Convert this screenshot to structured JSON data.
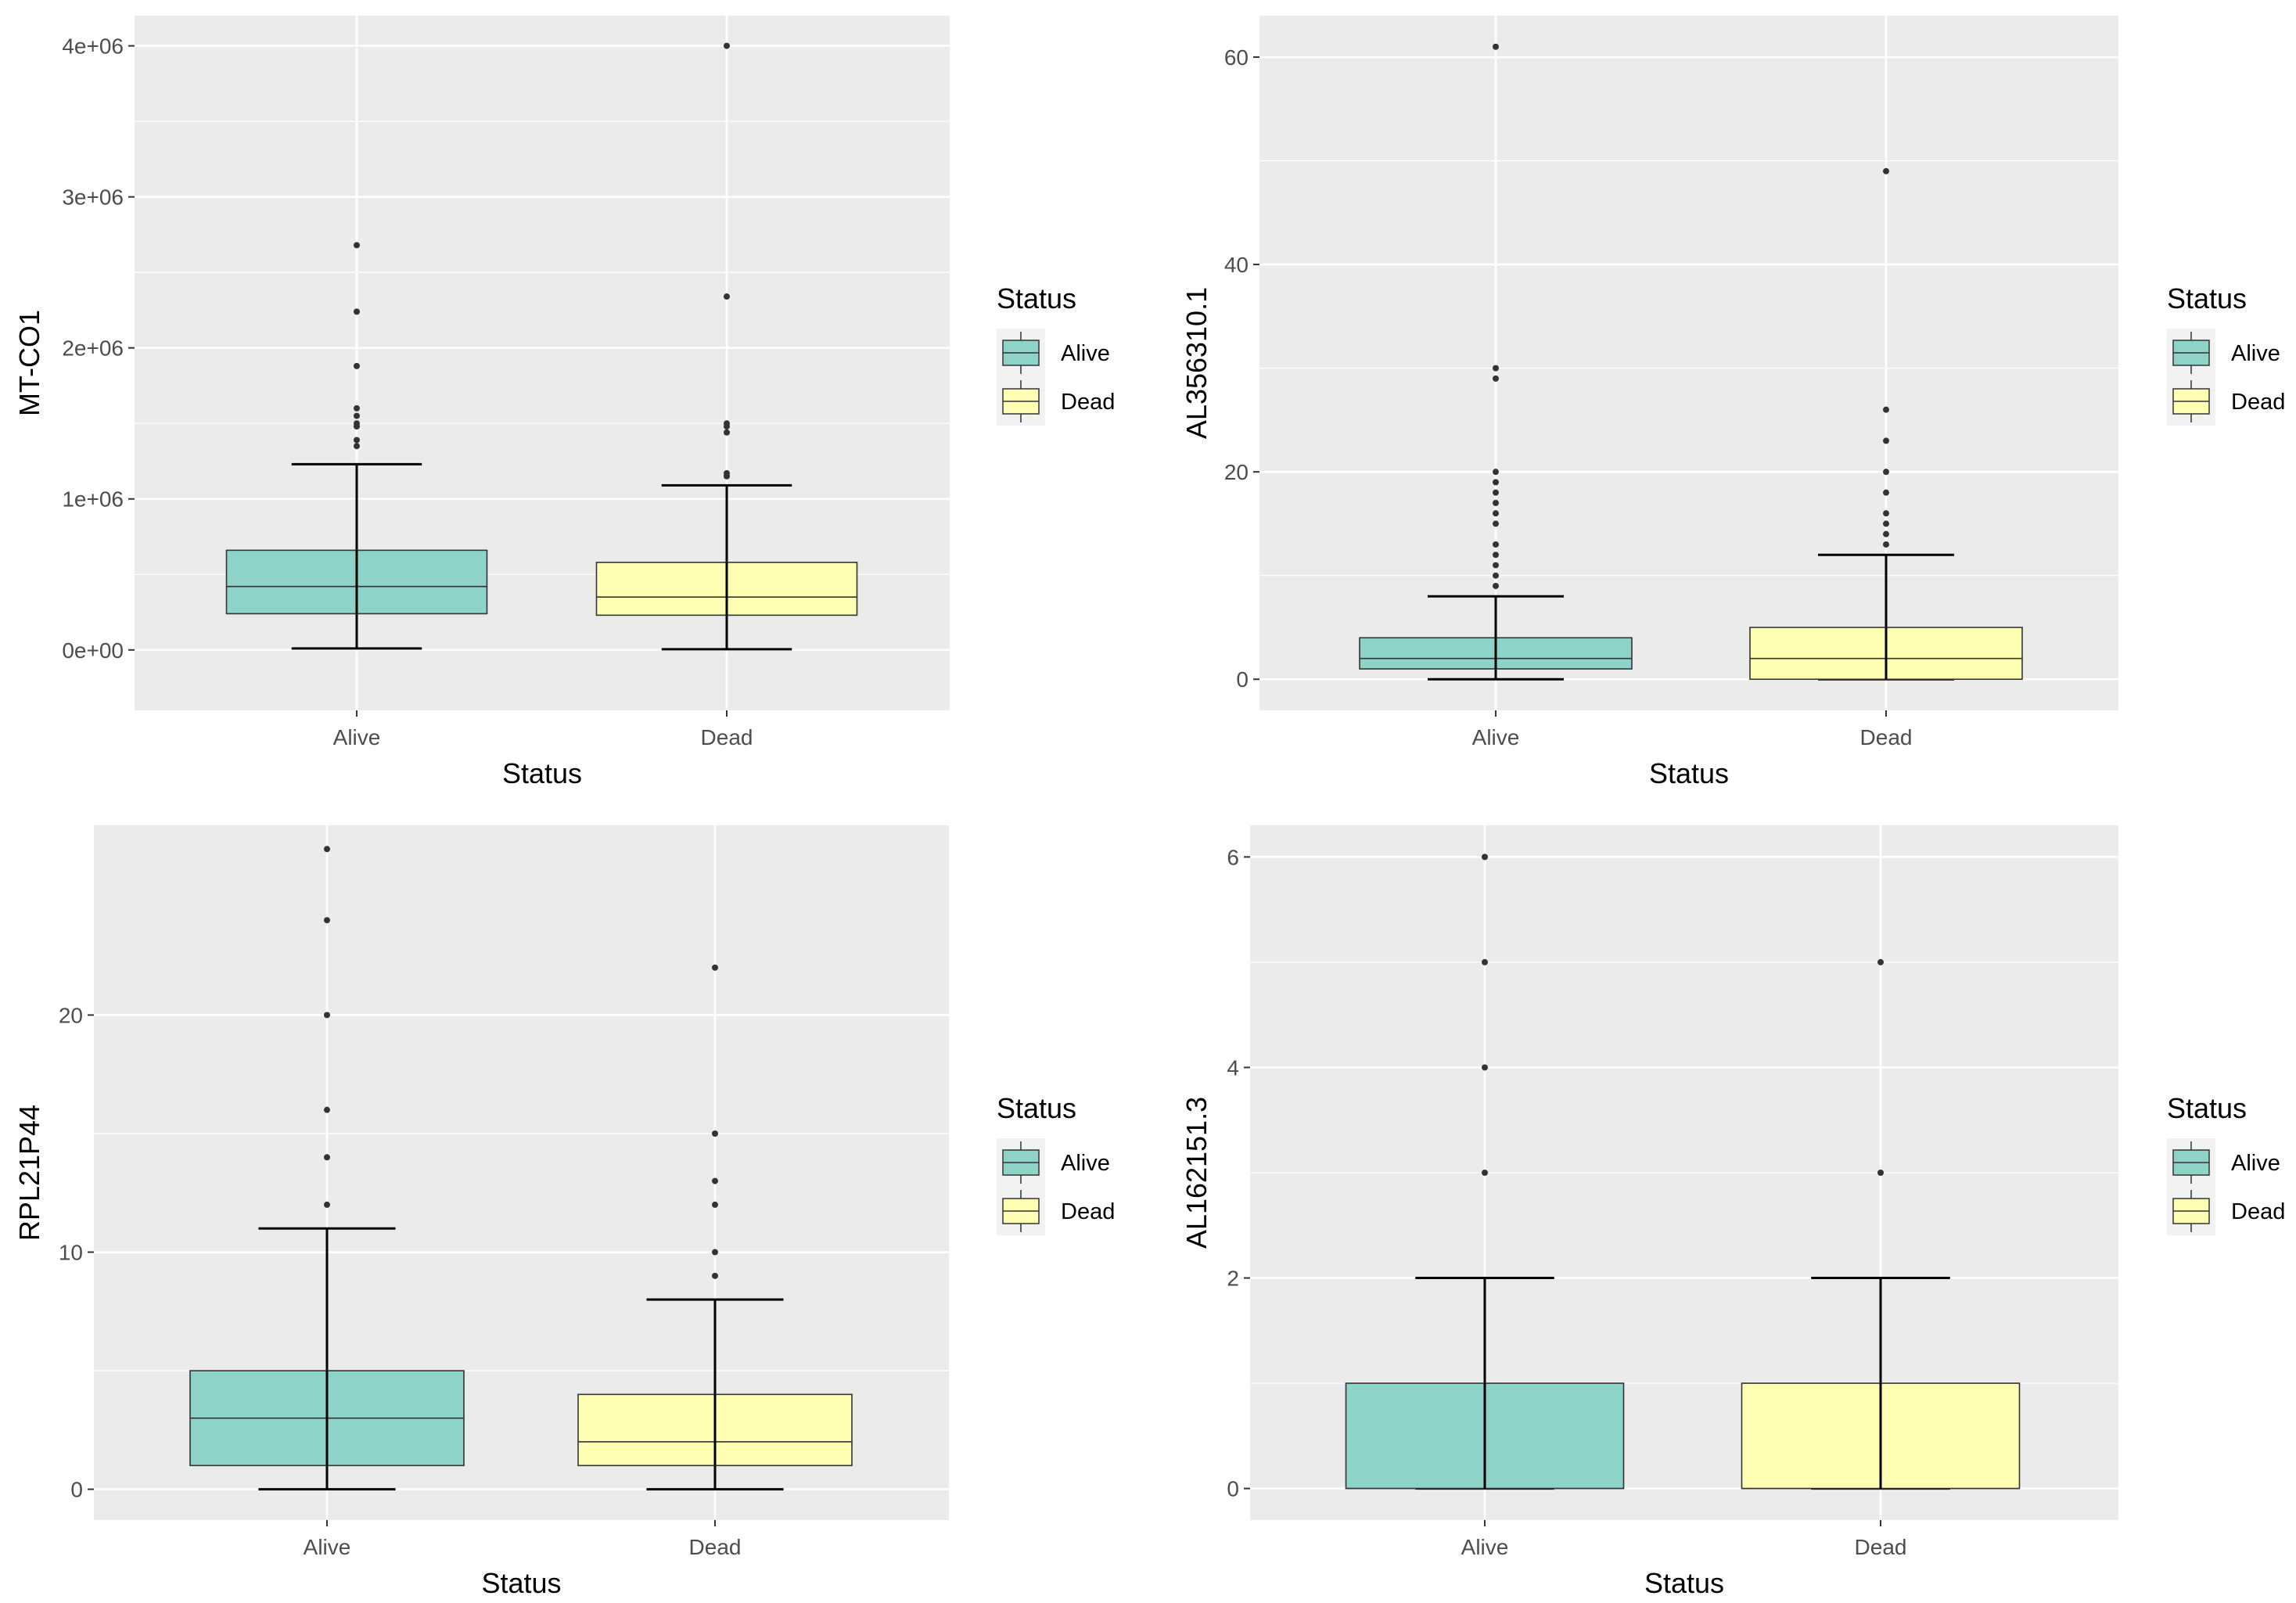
{
  "legend_title": "Status",
  "legend_items": [
    {
      "label": "Alive",
      "color": "#8DD3C7"
    },
    {
      "label": "Dead",
      "color": "#FFFFB3"
    }
  ],
  "chart_data": [
    {
      "type": "boxplot",
      "xlabel": "Status",
      "ylabel": "MT-CO1",
      "categories": [
        "Alive",
        "Dead"
      ],
      "ylim": [
        -400000,
        4200000
      ],
      "yticks": [
        0,
        1000000,
        2000000,
        3000000,
        4000000
      ],
      "ytick_labels": [
        "0e+00",
        "1e+06",
        "2e+06",
        "3e+06",
        "4e+06"
      ],
      "boxes": [
        {
          "category": "Alive",
          "min": 10000,
          "q1": 240000,
          "median": 420000,
          "q3": 660000,
          "max": 1230000,
          "outliers": [
            1350000,
            1390000,
            1480000,
            1500000,
            1550000,
            1600000,
            1880000,
            2240000,
            2680000
          ]
        },
        {
          "category": "Dead",
          "min": 5000,
          "q1": 230000,
          "median": 350000,
          "q3": 580000,
          "max": 1090000,
          "outliers": [
            1150000,
            1170000,
            1440000,
            1480000,
            1500000,
            2340000,
            4000000
          ]
        }
      ]
    },
    {
      "type": "boxplot",
      "xlabel": "Status",
      "ylabel": "AL356310.1",
      "categories": [
        "Alive",
        "Dead"
      ],
      "ylim": [
        -3,
        64
      ],
      "yticks": [
        0,
        20,
        40,
        60
      ],
      "ytick_labels": [
        "0",
        "20",
        "40",
        "60"
      ],
      "boxes": [
        {
          "category": "Alive",
          "min": 0,
          "q1": 1,
          "median": 2,
          "q3": 4,
          "max": 8,
          "outliers": [
            9,
            10,
            11,
            12,
            13,
            15,
            16,
            17,
            18,
            19,
            20,
            29,
            30,
            61
          ]
        },
        {
          "category": "Dead",
          "min": 0,
          "q1": 0,
          "median": 2,
          "q3": 5,
          "max": 12,
          "outliers": [
            13,
            14,
            15,
            16,
            18,
            20,
            23,
            26,
            49
          ]
        }
      ]
    },
    {
      "type": "boxplot",
      "xlabel": "Status",
      "ylabel": "RPL21P44",
      "categories": [
        "Alive",
        "Dead"
      ],
      "ylim": [
        -1.3,
        28
      ],
      "yticks": [
        0,
        10,
        20
      ],
      "ytick_labels": [
        "0",
        "10",
        "20"
      ],
      "boxes": [
        {
          "category": "Alive",
          "min": 0,
          "q1": 1,
          "median": 3,
          "q3": 5,
          "max": 11,
          "outliers": [
            12,
            14,
            16,
            20,
            24,
            27
          ]
        },
        {
          "category": "Dead",
          "min": 0,
          "q1": 1,
          "median": 2,
          "q3": 4,
          "max": 8,
          "outliers": [
            9,
            10,
            12,
            13,
            15,
            22
          ]
        }
      ]
    },
    {
      "type": "boxplot",
      "xlabel": "Status",
      "ylabel": "AL162151.3",
      "categories": [
        "Alive",
        "Dead"
      ],
      "ylim": [
        -0.3,
        6.3
      ],
      "yticks": [
        0,
        2,
        4,
        6
      ],
      "ytick_labels": [
        "0",
        "2",
        "4",
        "6"
      ],
      "boxes": [
        {
          "category": "Alive",
          "min": 0,
          "q1": 0,
          "median": 0,
          "q3": 1,
          "max": 2,
          "outliers": [
            3,
            4,
            5,
            6
          ]
        },
        {
          "category": "Dead",
          "min": 0,
          "q1": 0,
          "median": 0,
          "q3": 1,
          "max": 2,
          "outliers": [
            3,
            5
          ]
        }
      ]
    }
  ]
}
